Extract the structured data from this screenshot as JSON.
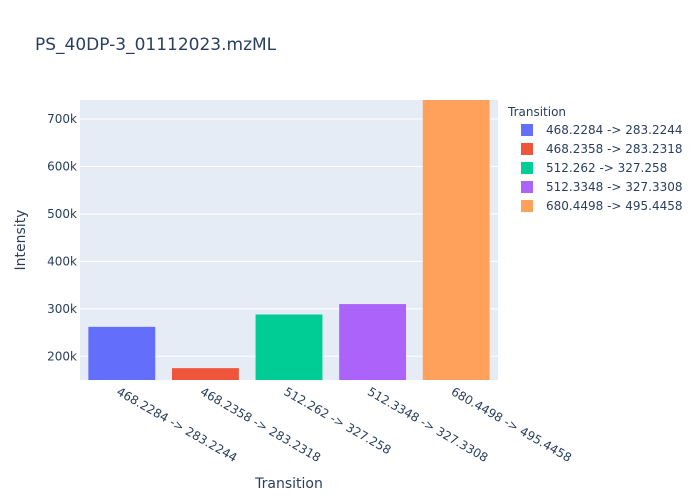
{
  "chart_data": {
    "type": "bar",
    "title": "PS_40DP-3_01112023.mzML",
    "xlabel": "Transition",
    "ylabel": "Intensity",
    "categories": [
      "468.2284 -> 283.2244",
      "468.2358 -> 283.2318",
      "512.262 -> 327.258",
      "512.3348 -> 327.3308",
      "680.4498 -> 495.4458"
    ],
    "values": [
      262000,
      175000,
      288000,
      310000,
      745000
    ],
    "colors": [
      "#636efa",
      "#EF553B",
      "#00cc96",
      "#ab63fa",
      "#FFA15A"
    ],
    "ylim": [
      150000,
      740000
    ],
    "yticks": [
      200000,
      300000,
      400000,
      500000,
      600000,
      700000
    ],
    "ytick_labels": [
      "200k",
      "300k",
      "400k",
      "500k",
      "600k",
      "700k"
    ],
    "grid": true,
    "legend": {
      "title": "Transition",
      "placement": "right",
      "entries": [
        "468.2284 -> 283.2244",
        "468.2358 -> 283.2318",
        "512.262 -> 327.258",
        "512.3348 -> 327.3308",
        "680.4498 -> 495.4458"
      ]
    }
  }
}
